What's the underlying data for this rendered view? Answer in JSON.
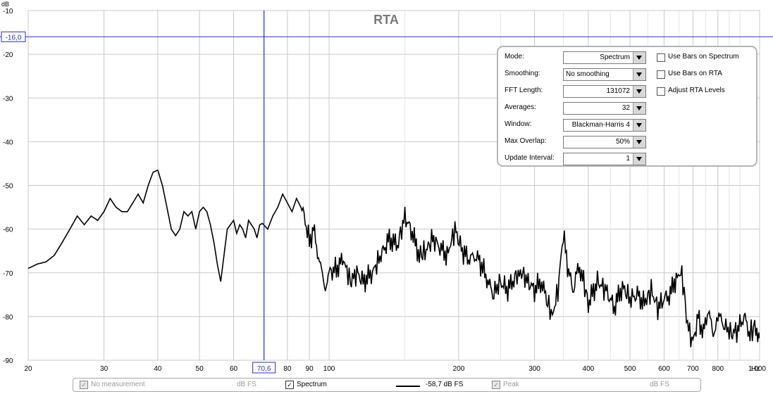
{
  "title": "RTA",
  "y_unit": "dB",
  "x_unit": "Hz",
  "cursor": {
    "freq_label": "70,6",
    "level_label": "-16,0",
    "freq": 70.6,
    "level": -16.0
  },
  "controls": {
    "mode": {
      "label": "Mode:",
      "value": "Spectrum"
    },
    "smoothing": {
      "label": "Smoothing:",
      "value": "No  smoothing"
    },
    "fft_length": {
      "label": "FFT Length:",
      "value": "131072"
    },
    "averages": {
      "label": "Averages:",
      "value": "32"
    },
    "window": {
      "label": "Window:",
      "value": "Blackman-Harris 4"
    },
    "max_overlap": {
      "label": "Max Overlap:",
      "value": "50%"
    },
    "update_interval": {
      "label": "Update Interval:",
      "value": "1"
    }
  },
  "checkboxes": {
    "bars_spectrum": {
      "label": "Use Bars on Spectrum",
      "checked": false
    },
    "bars_rta": {
      "label": "Use Bars on RTA",
      "checked": false
    },
    "adjust_levels": {
      "label": "Adjust RTA Levels",
      "checked": false
    }
  },
  "legend": {
    "no_measurement": {
      "label": "No measurement",
      "value": "dB FS"
    },
    "spectrum": {
      "label": "Spectrum",
      "value": "-58,7 dB FS"
    },
    "peak": {
      "label": "Peak",
      "value": "dB FS"
    }
  },
  "colors": {
    "trace": "#000000",
    "cursor": "#2b2bd9",
    "grid": "#c8c8c8",
    "panel_border": "#b4b4b4"
  },
  "chart_data": {
    "type": "line",
    "title": "RTA",
    "ylabel": "dB",
    "xlabel": "Hz",
    "x_scale": "log",
    "xlim": [
      20,
      1000
    ],
    "ylim": [
      -90,
      -10
    ],
    "y_ticks": [
      -10,
      -20,
      -30,
      -40,
      -50,
      -60,
      -70,
      -80,
      -90
    ],
    "x_ticks": [
      20,
      30,
      40,
      50,
      60,
      70.6,
      80,
      90,
      100,
      200,
      300,
      400,
      500,
      600,
      700,
      800,
      1000
    ],
    "x_tick_labels": [
      "20",
      "30",
      "40",
      "50",
      "60",
      "70,6",
      "80",
      "90",
      "100",
      "200",
      "300",
      "400",
      "500",
      "600",
      "700",
      "800",
      "1.000"
    ],
    "grid": true,
    "series": [
      {
        "name": "Spectrum",
        "x": [
          20,
          21,
          22,
          23,
          24,
          25,
          26,
          27,
          28,
          29,
          30,
          31,
          32,
          33,
          34,
          35,
          36,
          37,
          38,
          39,
          40,
          41,
          42,
          43,
          44,
          45,
          46,
          47,
          48,
          49,
          50,
          51,
          52,
          53,
          54,
          55,
          56,
          57,
          58,
          59,
          60,
          61,
          62,
          63,
          64,
          65,
          66,
          67,
          68,
          69,
          70,
          72,
          74,
          76,
          78,
          80,
          82,
          84,
          86,
          88,
          90,
          92,
          94,
          96,
          98,
          100,
          104,
          108,
          112,
          116,
          120,
          126,
          132,
          138,
          144,
          150,
          156,
          162,
          168,
          174,
          180,
          188,
          196,
          204,
          212,
          220,
          230,
          240,
          250,
          260,
          270,
          280,
          290,
          300,
          310,
          320,
          330,
          340,
          350,
          360,
          370,
          380,
          390,
          400,
          420,
          440,
          460,
          480,
          500,
          520,
          540,
          560,
          580,
          600,
          620,
          640,
          660,
          680,
          700,
          720,
          740,
          760,
          780,
          800,
          830,
          860,
          890,
          920,
          950,
          980,
          1000
        ],
        "y": [
          -69,
          -68,
          -67.5,
          -66,
          -63,
          -60,
          -57,
          -59,
          -57,
          -58,
          -56,
          -53,
          -55,
          -56,
          -56,
          -54,
          -52,
          -54,
          -50,
          -47,
          -46.5,
          -50,
          -55,
          -60,
          -61.5,
          -60,
          -56,
          -57,
          -56,
          -60,
          -56,
          -55,
          -56,
          -59,
          -63,
          -68,
          -72,
          -66,
          -60,
          -59,
          -58,
          -61,
          -59,
          -60,
          -62,
          -58,
          -59,
          -60,
          -62,
          -59,
          -58.7,
          -60,
          -57,
          -55,
          -52,
          -54,
          -56,
          -53,
          -55,
          -58,
          -63,
          -60,
          -65,
          -70,
          -73,
          -70,
          -69,
          -67,
          -72,
          -70,
          -72,
          -70,
          -66,
          -62,
          -64,
          -57,
          -61,
          -66,
          -65,
          -62,
          -64,
          -66,
          -60,
          -65,
          -67,
          -66,
          -70,
          -75,
          -72,
          -74,
          -71,
          -70,
          -72,
          -74,
          -72,
          -76,
          -80,
          -74,
          -61,
          -70,
          -74,
          -68,
          -72,
          -77,
          -72,
          -74,
          -78,
          -73,
          -76,
          -75,
          -77,
          -74,
          -78,
          -76,
          -75,
          -71,
          -70,
          -82,
          -86,
          -80,
          -84,
          -78,
          -85,
          -80,
          -82,
          -84,
          -83,
          -80,
          -84,
          -82,
          -85
        ]
      }
    ],
    "annotations": [
      "-16,0",
      "70,6"
    ]
  }
}
